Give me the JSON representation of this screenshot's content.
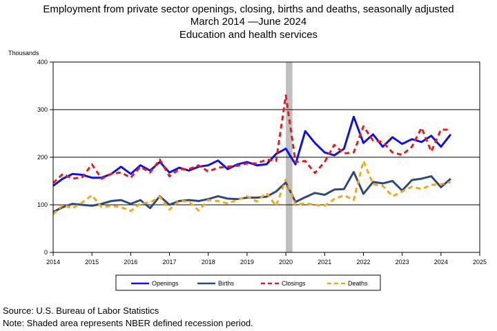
{
  "title_lines": [
    "Employment from private sector openings, closing, births and deaths, seasonally adjusted",
    "March 2014 —June 2024",
    "Education and health services"
  ],
  "source": "Source: U.S. Bureau of Labor Statistics",
  "note": "Note: Shaded area represents NBER defined recession period.",
  "chart_data": {
    "type": "line",
    "ylabel": "Thousands",
    "xlim": [
      2014,
      2025
    ],
    "ylim": [
      0,
      400
    ],
    "x_ticks": [
      "2014",
      "2015",
      "2016",
      "2017",
      "2018",
      "2019",
      "2020",
      "2021",
      "2022",
      "2023",
      "2024",
      "2025"
    ],
    "y_ticks": [
      "0",
      "100",
      "200",
      "300",
      "400"
    ],
    "grid": "horizontal",
    "legend_position": "bottom",
    "recession": [
      2020.0,
      2020.17
    ],
    "x": [
      2014.0,
      2014.25,
      2014.5,
      2014.75,
      2015.0,
      2015.25,
      2015.5,
      2015.75,
      2016.0,
      2016.25,
      2016.5,
      2016.75,
      2017.0,
      2017.25,
      2017.5,
      2017.75,
      2018.0,
      2018.25,
      2018.5,
      2018.75,
      2019.0,
      2019.25,
      2019.5,
      2019.75,
      2020.0,
      2020.25,
      2020.5,
      2020.75,
      2021.0,
      2021.25,
      2021.5,
      2021.75,
      2022.0,
      2022.25,
      2022.5,
      2022.75,
      2023.0,
      2023.25,
      2023.5,
      2023.75,
      2024.0,
      2024.25
    ],
    "series": [
      {
        "name": "Openings",
        "color": "#1010e6",
        "dash": "solid",
        "values": [
          140,
          155,
          165,
          163,
          157,
          157,
          165,
          180,
          165,
          183,
          172,
          190,
          168,
          178,
          172,
          180,
          183,
          193,
          175,
          185,
          190,
          183,
          185,
          207,
          218,
          185,
          255,
          230,
          210,
          204,
          218,
          285,
          230,
          248,
          222,
          242,
          228,
          238,
          232,
          245,
          222,
          248
        ]
      },
      {
        "name": "Births",
        "color": "#2e4a7a",
        "dash": "solid",
        "values": [
          85,
          95,
          102,
          100,
          98,
          102,
          108,
          110,
          102,
          110,
          93,
          118,
          100,
          108,
          110,
          108,
          112,
          118,
          113,
          112,
          115,
          115,
          117,
          128,
          147,
          106,
          116,
          125,
          121,
          132,
          133,
          169,
          123,
          148,
          145,
          150,
          130,
          152,
          155,
          160,
          137,
          155
        ]
      },
      {
        "name": "Closings",
        "color": "#e61c1c",
        "dash": "dashed",
        "values": [
          146,
          165,
          155,
          158,
          185,
          155,
          165,
          168,
          157,
          180,
          168,
          195,
          160,
          175,
          175,
          183,
          170,
          178,
          180,
          182,
          187,
          187,
          195,
          192,
          330,
          190,
          192,
          167,
          190,
          226,
          208,
          210,
          265,
          235,
          232,
          210,
          205,
          222,
          262,
          212,
          258,
          258
        ]
      },
      {
        "name": "Deaths",
        "color": "#f0a81e",
        "dash": "dashed",
        "values": [
          80,
          100,
          93,
          105,
          120,
          95,
          98,
          95,
          87,
          103,
          105,
          117,
          90,
          108,
          107,
          88,
          110,
          108,
          103,
          110,
          118,
          107,
          125,
          98,
          153,
          100,
          103,
          100,
          98,
          112,
          120,
          110,
          192,
          143,
          140,
          118,
          128,
          138,
          133,
          142,
          143,
          148
        ]
      }
    ]
  }
}
